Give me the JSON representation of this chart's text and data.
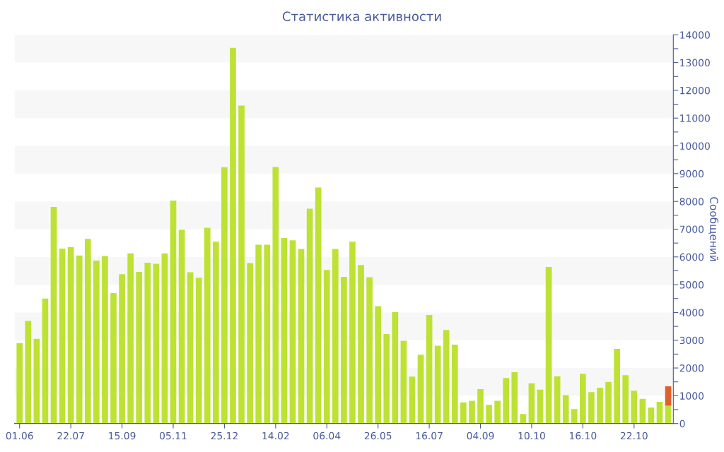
{
  "chart_data": {
    "type": "bar",
    "title": "Статистика активности",
    "ylabel": "Сообщений",
    "categories": [
      "01.06",
      null,
      null,
      null,
      null,
      null,
      "22.07",
      null,
      null,
      null,
      null,
      null,
      "15.09",
      null,
      null,
      null,
      null,
      null,
      "05.11",
      null,
      null,
      null,
      null,
      null,
      "25.12",
      null,
      null,
      null,
      null,
      null,
      "14.02",
      null,
      null,
      null,
      null,
      null,
      "06.04",
      null,
      null,
      null,
      null,
      null,
      "26.05",
      null,
      null,
      null,
      null,
      null,
      "16.07",
      null,
      null,
      null,
      null,
      null,
      "04.09",
      null,
      null,
      null,
      null,
      null,
      "10.10",
      null,
      null,
      null,
      null,
      null,
      "16.10",
      null,
      null,
      null,
      null,
      null,
      "22.10",
      null,
      null,
      null,
      null
    ],
    "stacked": true,
    "series": [
      {
        "color": "#bde234",
        "values": [
          2900,
          3700,
          3050,
          4500,
          7800,
          6300,
          6350,
          6050,
          6650,
          5870,
          6030,
          4700,
          5380,
          6130,
          5460,
          5790,
          5750,
          6130,
          8030,
          6980,
          5450,
          5250,
          7050,
          6550,
          9230,
          13530,
          11450,
          5780,
          6440,
          6440,
          9240,
          6680,
          6600,
          6290,
          7740,
          8500,
          5530,
          6290,
          5280,
          6550,
          5710,
          5270,
          4230,
          3220,
          4010,
          2980,
          1690,
          2480,
          3910,
          2800,
          3370,
          2840,
          760,
          820,
          1240,
          670,
          820,
          1640,
          1850,
          340,
          1450,
          1220,
          5640,
          1700,
          1020,
          520,
          1790,
          1130,
          1290,
          1500,
          2690,
          1740,
          1180,
          890,
          580,
          780,
          640
        ]
      },
      {
        "color": "#e0602c",
        "values": [
          null,
          null,
          null,
          null,
          null,
          null,
          null,
          null,
          null,
          null,
          null,
          null,
          null,
          null,
          null,
          null,
          null,
          null,
          null,
          null,
          null,
          null,
          null,
          null,
          null,
          null,
          null,
          null,
          null,
          null,
          null,
          null,
          null,
          null,
          null,
          null,
          null,
          null,
          null,
          null,
          null,
          null,
          null,
          null,
          null,
          null,
          null,
          null,
          null,
          null,
          null,
          null,
          null,
          null,
          null,
          null,
          null,
          null,
          null,
          null,
          null,
          null,
          null,
          null,
          null,
          null,
          null,
          null,
          null,
          null,
          null,
          null,
          null,
          null,
          null,
          null,
          700
        ]
      }
    ],
    "ylim": [
      0,
      14000
    ],
    "yticks": [
      0,
      {
        "value": 500,
        "label": null
      },
      1000,
      {
        "value": 1500,
        "label": null
      },
      2000,
      {
        "value": 2500,
        "label": null
      },
      3000,
      {
        "value": 3500,
        "label": null
      },
      4000,
      {
        "value": 4500,
        "label": null
      },
      5000,
      {
        "value": 5500,
        "label": null
      },
      6000,
      {
        "value": 6500,
        "label": null
      },
      7000,
      {
        "value": 7500,
        "label": null
      },
      8000,
      {
        "value": 8500,
        "label": null
      },
      9000,
      {
        "value": 9500,
        "label": null
      },
      10000,
      {
        "value": 10500,
        "label": null
      },
      11000,
      {
        "value": 11500,
        "label": null
      },
      12000,
      {
        "value": 12500,
        "label": null
      },
      13000,
      {
        "value": 13500,
        "label": null
      },
      14000
    ],
    "bands": [
      {
        "axis": "y",
        "from": 1000,
        "to": 2000,
        "color": "#f7f7f7"
      },
      {
        "axis": "y",
        "from": 3000,
        "to": 4000,
        "color": "#f7f7f7"
      },
      {
        "axis": "y",
        "from": 5000,
        "to": 6000,
        "color": "#f7f7f7"
      },
      {
        "axis": "y",
        "from": 7000,
        "to": 8000,
        "color": "#f7f7f7"
      },
      {
        "axis": "y",
        "from": 9000,
        "to": 10000,
        "color": "#f7f7f7"
      },
      {
        "axis": "y",
        "from": 11000,
        "to": 12000,
        "color": "#f7f7f7"
      },
      {
        "axis": "y",
        "from": 13000,
        "to": 14000,
        "color": "#f7f7f7"
      }
    ],
    "grid": false,
    "legend": false
  }
}
